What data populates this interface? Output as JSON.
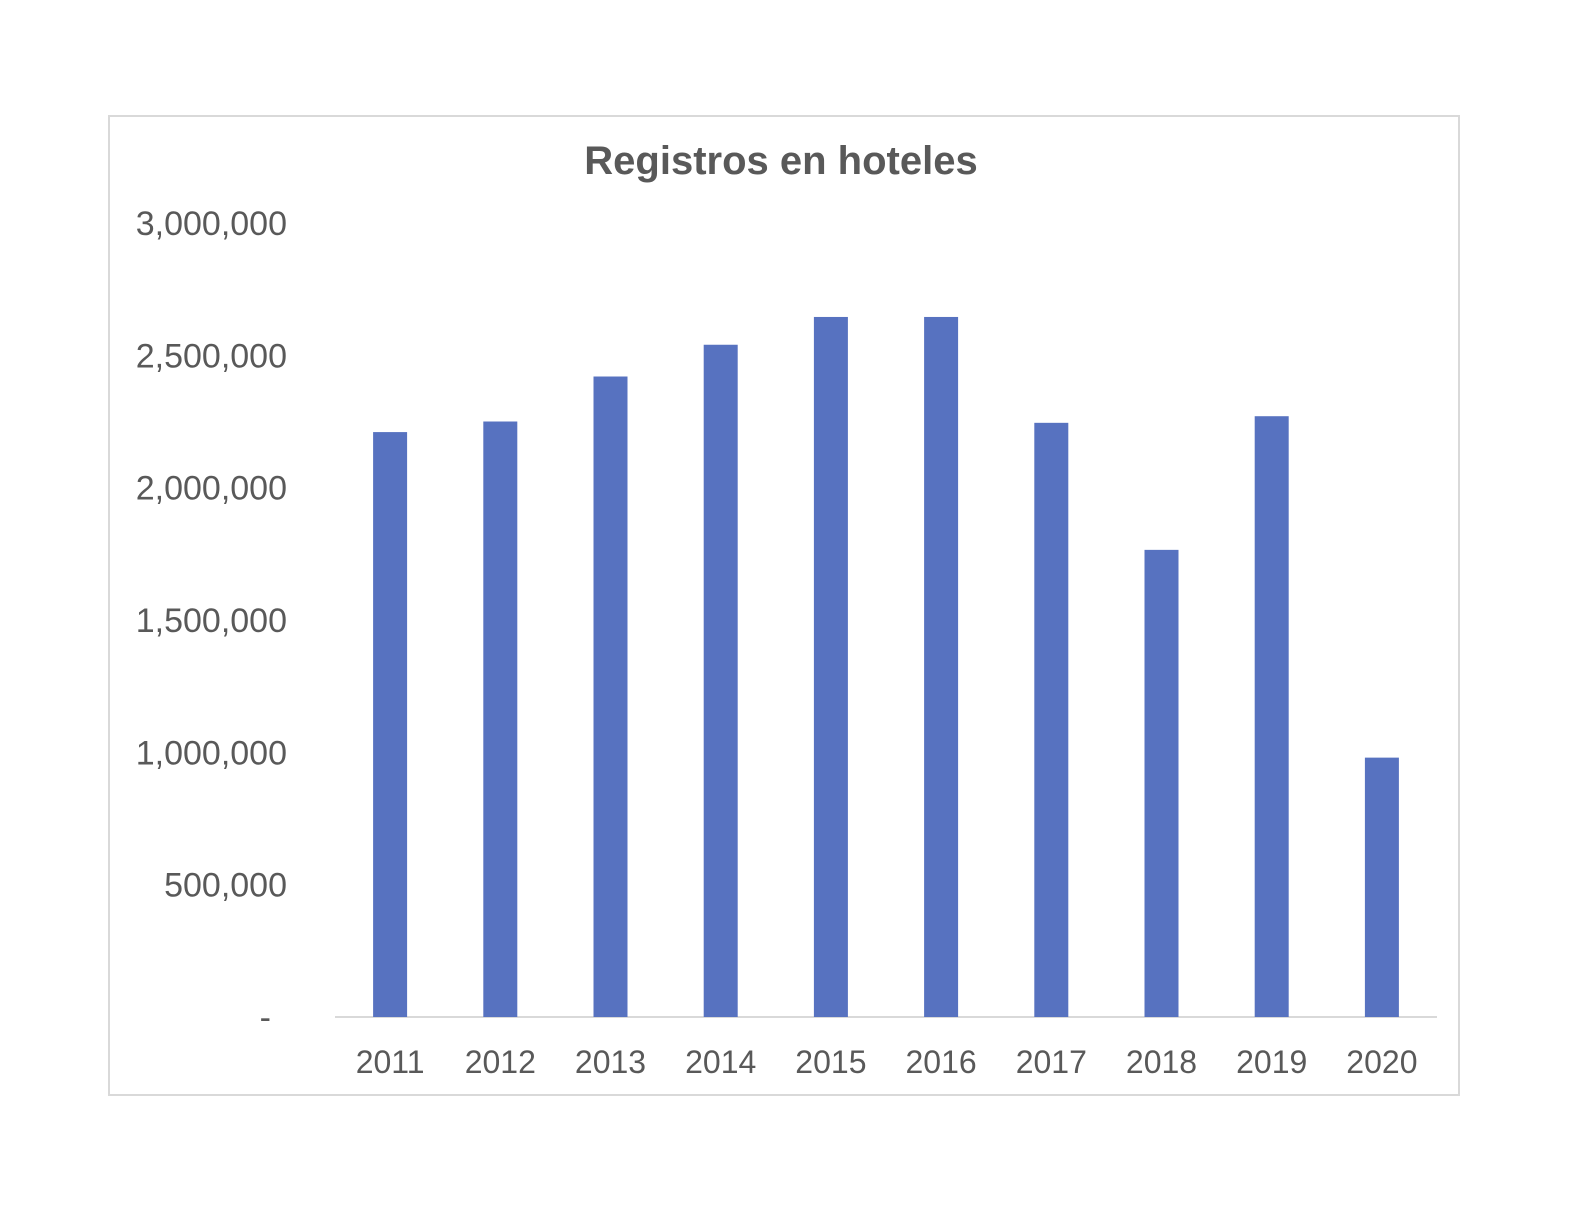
{
  "chart_data": {
    "type": "bar",
    "title": "Registros en hoteles",
    "xlabel": "",
    "ylabel": "",
    "categories": [
      "2011",
      "2012",
      "2013",
      "2014",
      "2015",
      "2016",
      "2017",
      "2018",
      "2019",
      "2020"
    ],
    "values": [
      2210000,
      2250000,
      2420000,
      2540000,
      2645000,
      2645000,
      2245000,
      1765000,
      2270000,
      980000
    ],
    "ylim": [
      0,
      3000000
    ],
    "y_ticks": [
      0,
      500000,
      1000000,
      1500000,
      2000000,
      2500000,
      3000000
    ],
    "y_tick_labels": [
      "-",
      "500,000",
      "1,000,000",
      "1,500,000",
      "2,000,000",
      "2,500,000",
      "3,000,000"
    ],
    "grid": false,
    "legend": "none",
    "colors": {
      "bar": "#5772c0",
      "text": "#595959",
      "axis": "#d9d9d9",
      "frame": "#d9d9d9"
    }
  }
}
